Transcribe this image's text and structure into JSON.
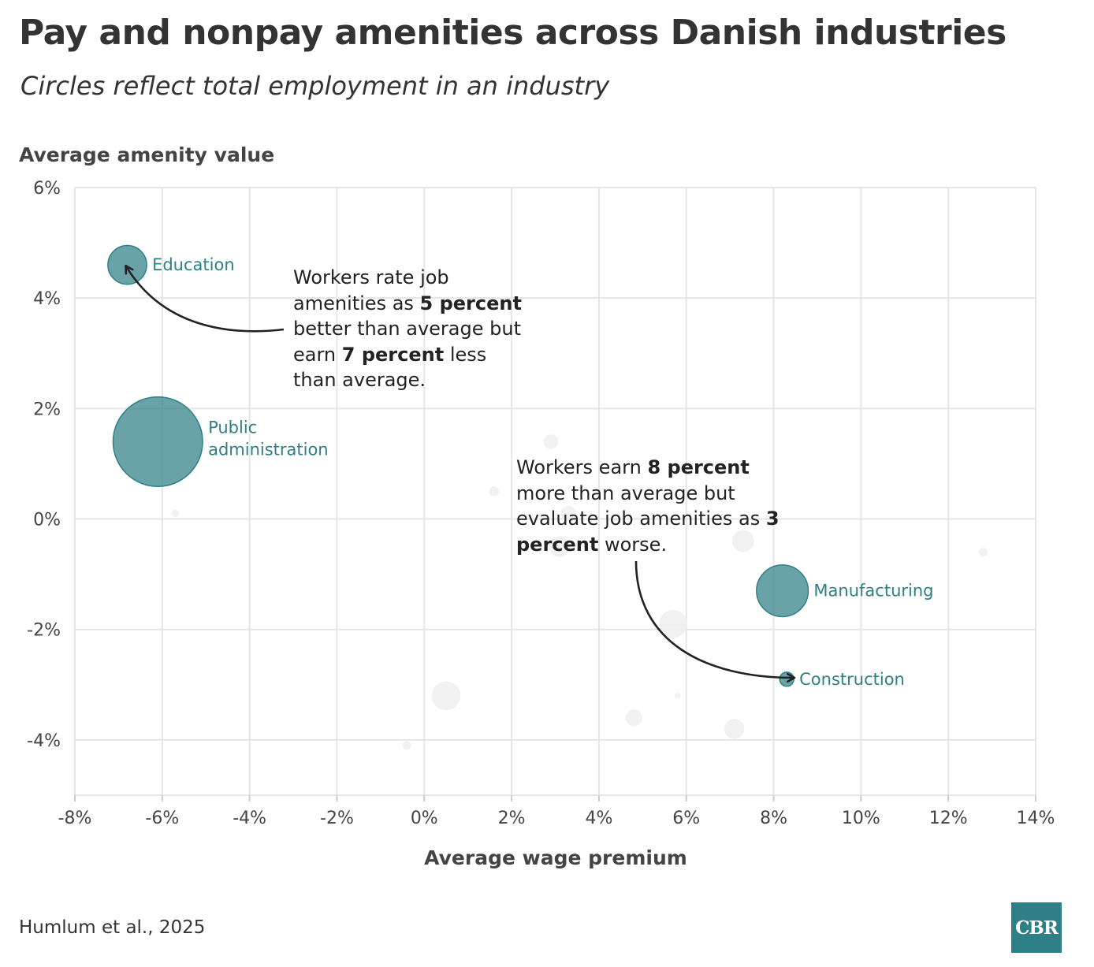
{
  "title": "Pay and nonpay amenities across Danish industries",
  "subtitle": "Circles reflect total employment in an industry",
  "source": "Humlum et al., 2025",
  "logo": "CBR",
  "colors": {
    "highlight": "#2f7f87",
    "background_bubble": "#efefef",
    "grid": "#e6e6e6",
    "text": "#333333"
  },
  "chart_data": {
    "type": "scatter",
    "title": "Pay and nonpay amenities across Danish industries",
    "subtitle": "Circles reflect total employment in an industry",
    "xlabel": "Average wage premium",
    "ylabel": "Average amenity value",
    "xlim": [
      -8,
      14
    ],
    "ylim": [
      -5,
      6
    ],
    "x_ticks": [
      -8,
      -6,
      -4,
      -2,
      0,
      2,
      4,
      6,
      8,
      10,
      12,
      14
    ],
    "y_ticks": [
      -4,
      -2,
      0,
      2,
      4,
      6
    ],
    "x_tick_labels": [
      "-8%",
      "-6%",
      "-4%",
      "-2%",
      "0%",
      "2%",
      "4%",
      "6%",
      "8%",
      "10%",
      "12%",
      "14%"
    ],
    "y_tick_labels": [
      "-4%",
      "-2%",
      "0%",
      "2%",
      "4%",
      "6%"
    ],
    "grid": true,
    "size_meaning": "total employment in an industry",
    "highlighted": [
      {
        "name": "Education",
        "label_lines": [
          "Education"
        ],
        "x": -6.8,
        "y": 4.6,
        "employment": 9
      },
      {
        "name": "Public administration",
        "label_lines": [
          "Public",
          "administration"
        ],
        "x": -6.1,
        "y": 1.4,
        "employment": 48
      },
      {
        "name": "Manufacturing",
        "label_lines": [
          "Manufacturing"
        ],
        "x": 8.2,
        "y": -1.3,
        "employment": 16
      },
      {
        "name": "Construction",
        "label_lines": [
          "Construction"
        ],
        "x": 8.3,
        "y": -2.9,
        "employment": 1.2
      }
    ],
    "other_industries": [
      {
        "x": 2.9,
        "y": 1.4,
        "employment": 1.3
      },
      {
        "x": 1.6,
        "y": 0.5,
        "employment": 0.6
      },
      {
        "x": -5.7,
        "y": 0.1,
        "employment": 0.35
      },
      {
        "x": 3.3,
        "y": 0.1,
        "employment": 1.4
      },
      {
        "x": 3.1,
        "y": -0.5,
        "employment": 2.6
      },
      {
        "x": 7.3,
        "y": -0.4,
        "employment": 2.9
      },
      {
        "x": 12.8,
        "y": -0.6,
        "employment": 0.45
      },
      {
        "x": 5.7,
        "y": -1.9,
        "employment": 4.7
      },
      {
        "x": 5.8,
        "y": -3.2,
        "employment": 0.2
      },
      {
        "x": 0.5,
        "y": -3.2,
        "employment": 5
      },
      {
        "x": 4.8,
        "y": -3.6,
        "employment": 1.7
      },
      {
        "x": 7.1,
        "y": -3.8,
        "employment": 2.4
      },
      {
        "x": -0.4,
        "y": -4.1,
        "employment": 0.45
      }
    ],
    "annotations": [
      {
        "target": "Education",
        "segments": [
          {
            "text": "Workers rate job amenities as ",
            "bold": false
          },
          {
            "text": "5 percent",
            "bold": true
          },
          {
            "text": " better than average but earn ",
            "bold": false
          },
          {
            "text": "7 percent",
            "bold": true
          },
          {
            "text": " less than average.",
            "bold": false
          }
        ]
      },
      {
        "target": "Construction",
        "segments": [
          {
            "text": "Workers earn ",
            "bold": false
          },
          {
            "text": "8 percent",
            "bold": true
          },
          {
            "text": " more than average but evaluate job amenities as ",
            "bold": false
          },
          {
            "text": "3 percent",
            "bold": true
          },
          {
            "text": " worse.",
            "bold": false
          }
        ]
      }
    ]
  }
}
